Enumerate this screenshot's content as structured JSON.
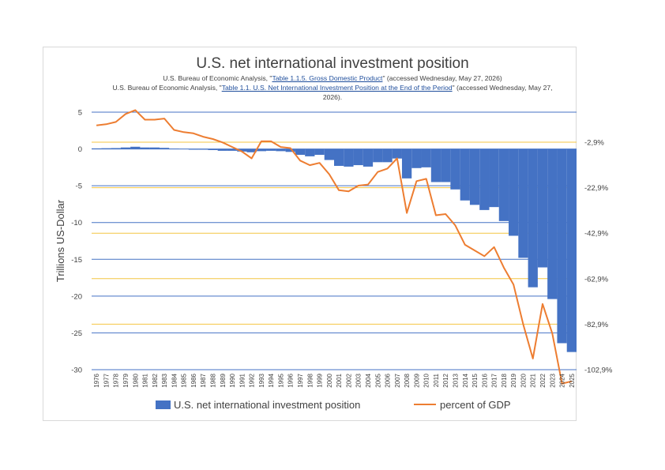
{
  "chart_data": {
    "type": "bar+line",
    "title": "U.S. net international investment position",
    "subtitle_lines": [
      {
        "pre": "U.S. Bureau of Economic Analysis, \"",
        "link": "Table 1.1.5. Gross Domestic Product",
        "post": "\" (accessed Wednesday, May 27, 2026)"
      },
      {
        "pre": "U.S. Bureau of Economic Analysis, \"",
        "link": "Table 1.1. U.S. Net International Investment Position at the End of the Period",
        "post": "\" (accessed Wednesday, May 27, 2026)."
      }
    ],
    "ylabel": "Trillions US-Dollar",
    "ylim": [
      -30,
      5
    ],
    "y_ticks": [
      "5",
      "0",
      "-5",
      "-10",
      "-15",
      "-20",
      "-25",
      "-30"
    ],
    "y2_ticks": [
      "-2,9%",
      "-22,9%",
      "-42,9%",
      "-62,9%",
      "-82,9%",
      "-102,9%"
    ],
    "y2lim": [
      -102.9,
      10.3
    ],
    "categories": [
      "1976",
      "1977",
      "1978",
      "1979",
      "1980",
      "1981",
      "1982",
      "1983",
      "1984",
      "1985",
      "1986",
      "1987",
      "1988",
      "1989",
      "1990",
      "1991",
      "1992",
      "1993",
      "1994",
      "1995",
      "1996",
      "1997",
      "1998",
      "1999",
      "2000",
      "2001",
      "2002",
      "2003",
      "2004",
      "2005",
      "2006",
      "2007",
      "2008",
      "2009",
      "2010",
      "2011",
      "2012",
      "2013",
      "2014",
      "2015",
      "2016",
      "2017",
      "2018",
      "2019",
      "2020",
      "2021",
      "2022",
      "2023",
      "2024",
      "2025"
    ],
    "series": [
      {
        "name": "U.S. net international investment position",
        "kind": "bar",
        "color": "#4472c4",
        "values": [
          0.08,
          0.1,
          0.12,
          0.2,
          0.3,
          0.2,
          0.2,
          0.15,
          0.05,
          -0.05,
          -0.1,
          -0.1,
          -0.15,
          -0.25,
          -0.25,
          -0.35,
          -0.45,
          -0.3,
          -0.25,
          -0.3,
          -0.4,
          -0.8,
          -1.0,
          -0.8,
          -1.5,
          -2.3,
          -2.4,
          -2.2,
          -2.4,
          -1.8,
          -1.8,
          -1.3,
          -4.0,
          -2.6,
          -2.5,
          -4.5,
          -4.5,
          -5.5,
          -7.0,
          -7.6,
          -8.3,
          -7.9,
          -9.8,
          -11.8,
          -14.8,
          -18.8,
          -16.1,
          -20.4,
          -26.4,
          -27.6
        ]
      },
      {
        "name": "percent of GDP",
        "kind": "line",
        "color": "#ed7d31",
        "values": [
          4.5,
          5.0,
          6.0,
          9.5,
          11.2,
          7.0,
          7.0,
          7.5,
          2.5,
          1.5,
          1.0,
          -0.5,
          -1.5,
          -3.0,
          -5.0,
          -7.0,
          -10.0,
          -2.5,
          -2.5,
          -5.0,
          -5.5,
          -11.0,
          -13.0,
          -12.0,
          -17.0,
          -24.0,
          -24.5,
          -22.0,
          -21.5,
          -16.0,
          -14.5,
          -10.0,
          -34.0,
          -20.0,
          -19.0,
          -35.0,
          -34.5,
          -39.5,
          -48.0,
          -50.5,
          -53.0,
          -49.0,
          -58.0,
          -65.5,
          -83.0,
          -98.0,
          -74.0,
          -87.0,
          -109.0,
          -108.0
        ]
      }
    ],
    "legend": "bottom",
    "grid": true
  }
}
